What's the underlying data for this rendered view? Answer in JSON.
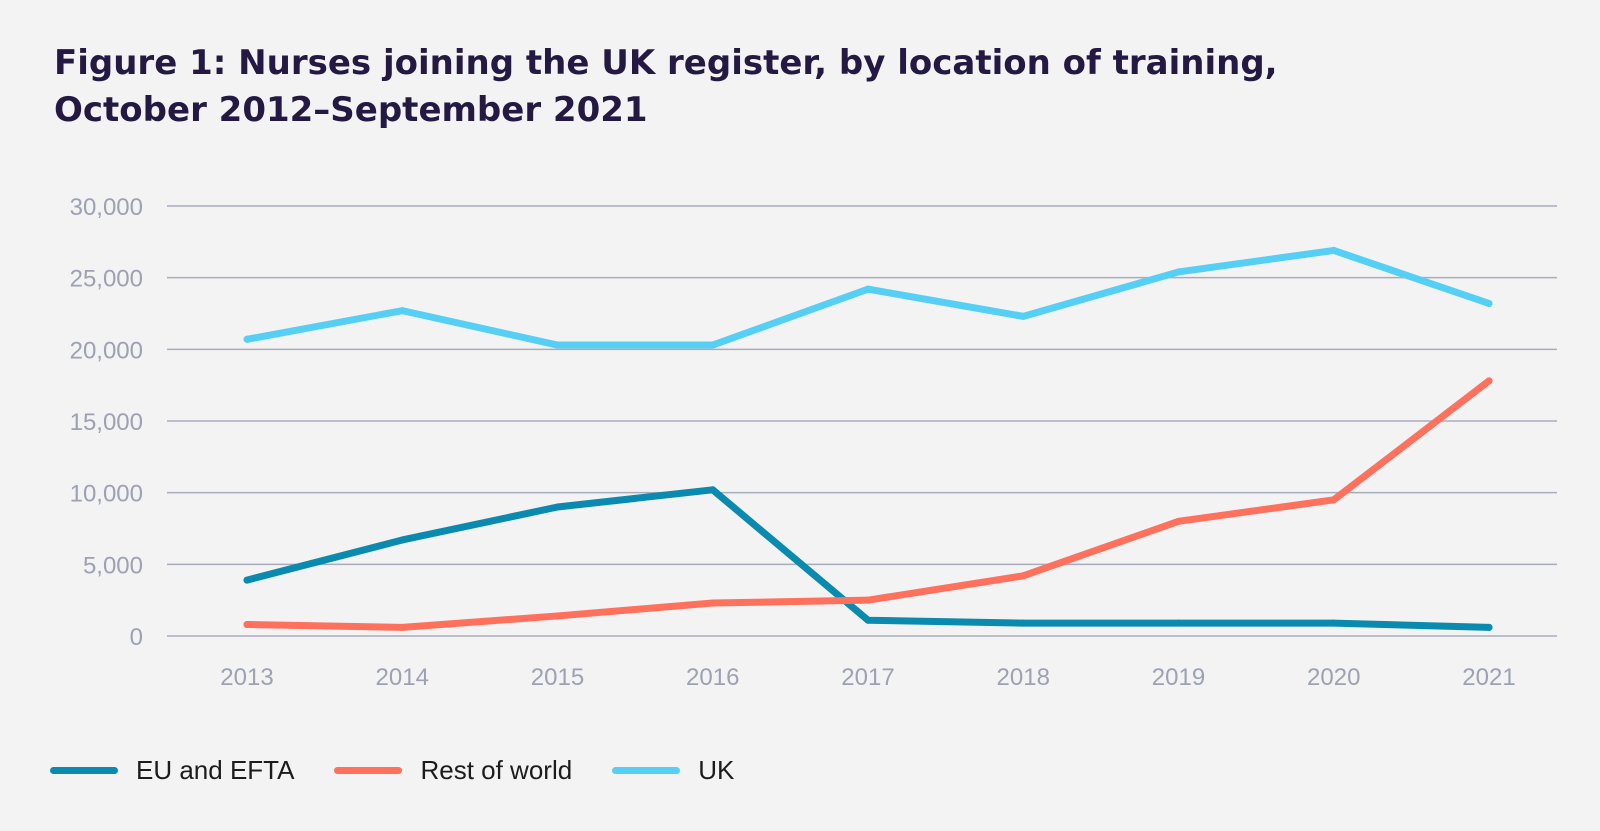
{
  "title_line1": "Figure 1: Nurses joining the UK register, by location of training,",
  "title_line2": "October 2012–September 2021",
  "colors": {
    "background": "#f3f3f3",
    "title": "#231942",
    "grid": "#a9adbb",
    "tick": "#9da1b2"
  },
  "chart_data": {
    "type": "line",
    "title": "Figure 1: Nurses joining the UK register, by location of training, October 2012–September 2021",
    "xlabel": "",
    "ylabel": "",
    "categories": [
      "2013",
      "2014",
      "2015",
      "2016",
      "2017",
      "2018",
      "2019",
      "2020",
      "2021"
    ],
    "ylim": [
      0,
      30000
    ],
    "yticks": [
      0,
      5000,
      10000,
      15000,
      20000,
      25000,
      30000
    ],
    "ytick_labels": [
      "0",
      "5,000",
      "10,000",
      "15,000",
      "20,000",
      "25,000",
      "30,000"
    ],
    "grid": true,
    "legend_position": "bottom-left",
    "series": [
      {
        "name": "EU and EFTA",
        "color": "#0b8ab0",
        "values": [
          3900,
          6700,
          9000,
          10200,
          1100,
          900,
          900,
          900,
          600
        ]
      },
      {
        "name": "Rest of world",
        "color": "#ff705d",
        "values": [
          800,
          600,
          1400,
          2300,
          2500,
          4200,
          8000,
          9500,
          17800
        ]
      },
      {
        "name": "UK",
        "color": "#55d0f4",
        "values": [
          20700,
          22700,
          20300,
          20300,
          24200,
          22300,
          25400,
          26900,
          23200
        ]
      }
    ]
  }
}
